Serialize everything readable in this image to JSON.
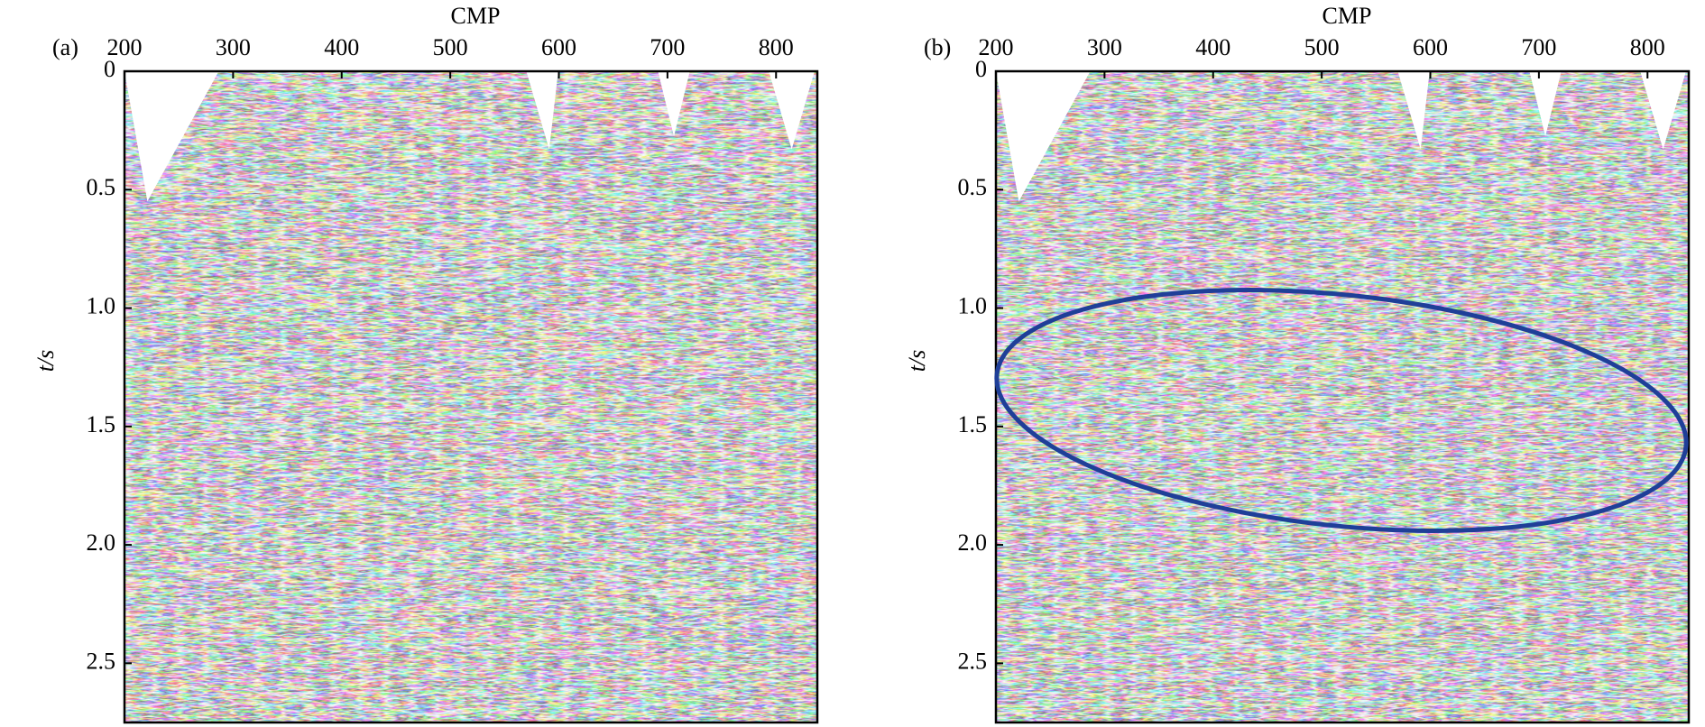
{
  "chart_data": [
    {
      "type": "image",
      "panel_label": "(a)",
      "xlabel": "CMP",
      "ylabel": "t/s",
      "xlim": [
        200,
        838
      ],
      "xticks": [
        200,
        300,
        400,
        500,
        600,
        700,
        800
      ],
      "ylim": [
        0,
        2.75
      ],
      "yticks": [
        0,
        0.5,
        {
          "value": 1,
          "label": "1.0"
        },
        1.5,
        {
          "value": 2,
          "label": "2.0"
        },
        2.5
      ]
    },
    {
      "type": "image",
      "panel_label": "(b)",
      "xlabel": "CMP",
      "ylabel": "t/s",
      "xlim": [
        200,
        838
      ],
      "xticks": [
        200,
        300,
        400,
        500,
        600,
        700,
        800
      ],
      "ylim": [
        0,
        2.75
      ],
      "yticks": [
        0,
        0.5,
        {
          "value": 1,
          "label": "1.0"
        },
        1.5,
        {
          "value": 2,
          "label": "2.0"
        },
        2.5
      ]
    }
  ]
}
